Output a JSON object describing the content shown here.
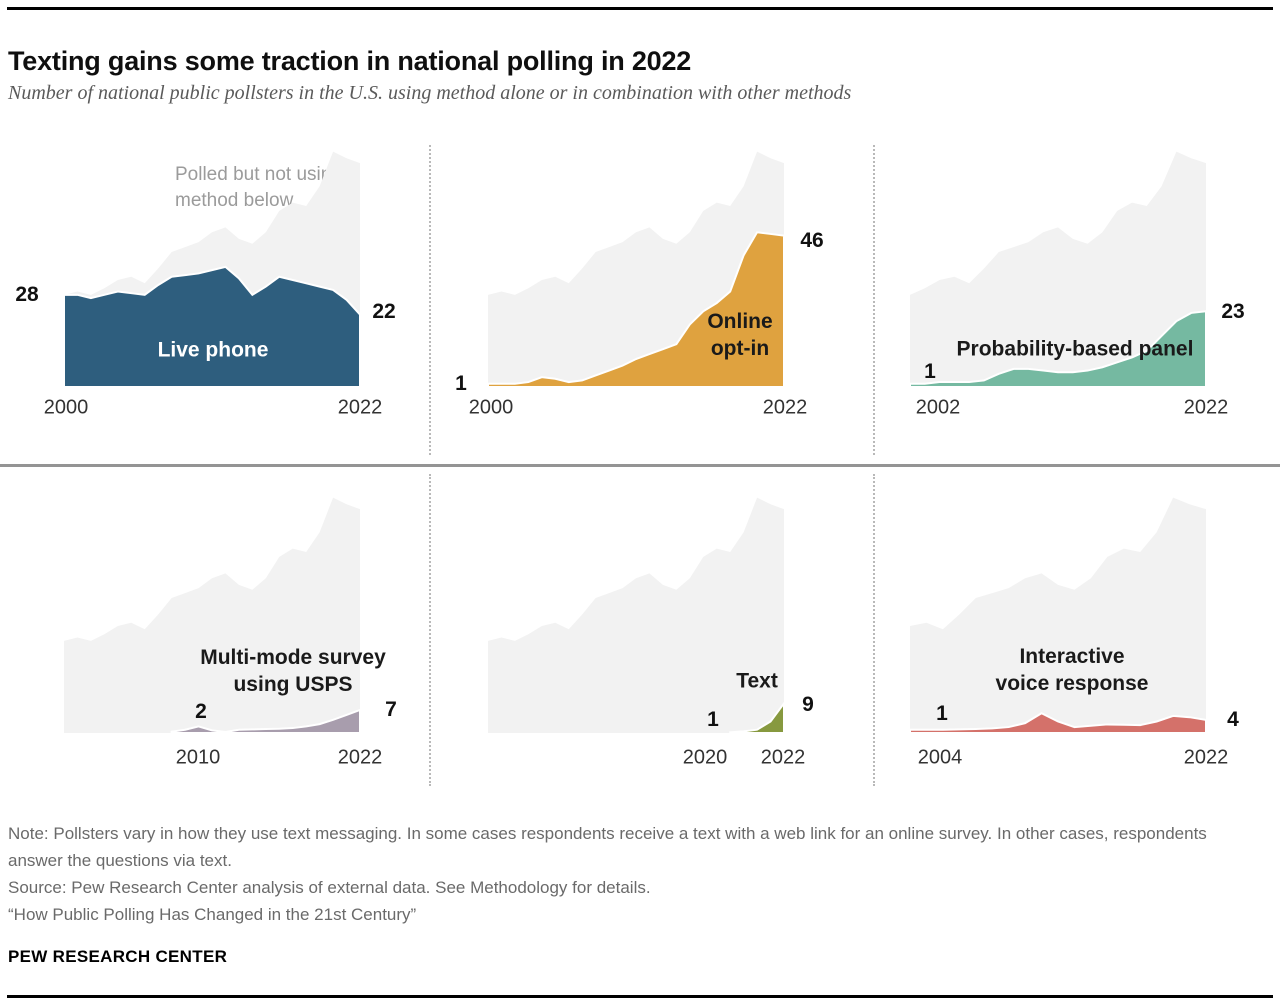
{
  "page": {
    "title": "Texting gains some traction in national polling in 2022",
    "subtitle": "Number of national public pollsters in the U.S. using method alone or in combination with other methods",
    "note": "Note: Pollsters vary in how they use text messaging. In some cases respondents receive a text with a web link for an online survey. In other cases, respondents answer the questions via text.",
    "source": "Source: Pew Research Center analysis of external data. See Methodology for details.",
    "report": "“How Public Polling Has Changed in the 21st Century”",
    "brand": "PEW RESEARCH CENTER"
  },
  "annotation": {
    "lines": [
      "Polled but not using",
      "method below"
    ],
    "color": "#9b9b9b"
  },
  "colors": {
    "gray_area": "#f2f2f2",
    "live_phone": "#2e5e7e",
    "online_opt_in": "#dfa23f",
    "probability_panel": "#75b9a1",
    "usps": "#a89dad",
    "text": "#87993f",
    "ivr": "#d4716a"
  },
  "chart_data": [
    {
      "type": "area",
      "key": "live-phone",
      "title_lines": [
        "Live phone"
      ],
      "color": "#2e5e7e",
      "label_text_color": "#ffffff",
      "x_start": 2000,
      "x_end": 2022,
      "start_label": "28",
      "end_label": "22",
      "axis_ticks": [
        "2000",
        "2022"
      ],
      "ylim": [
        0,
        72
      ],
      "series": [
        {
          "name": "All national pollsters (polled but not using method below)",
          "values": [
            28,
            29,
            28,
            30,
            32.5,
            33.5,
            31.5,
            36,
            41,
            42.5,
            44,
            47,
            48.5,
            45,
            43.5,
            47,
            53.5,
            56,
            55,
            61,
            71.5,
            69.5,
            68
          ]
        },
        {
          "name": "Live phone",
          "values": [
            28,
            28,
            27,
            28,
            29,
            28.5,
            28,
            31,
            33.5,
            34,
            34.5,
            35.5,
            36.5,
            33,
            28,
            30.5,
            33.5,
            32.5,
            31.5,
            30.5,
            29.5,
            26.5,
            22
          ]
        }
      ]
    },
    {
      "type": "area",
      "key": "online-opt-in",
      "title_lines": [
        "Online",
        "opt-in"
      ],
      "color": "#dfa23f",
      "label_text_color": "#1a1a1a",
      "x_start": 2000,
      "x_end": 2022,
      "start_label": "1",
      "end_label": "46",
      "axis_ticks": [
        "2000",
        "2022"
      ],
      "ylim": [
        0,
        72
      ],
      "series": [
        {
          "name": "All national pollsters (polled but not using method below)",
          "values": [
            28,
            29,
            28,
            30,
            32.5,
            33.5,
            31.5,
            36,
            41,
            42.5,
            44,
            47,
            48.5,
            45,
            43.5,
            47,
            53.5,
            56,
            55,
            61,
            71.5,
            69.5,
            68
          ]
        },
        {
          "name": "Online opt-in",
          "values": [
            1,
            1,
            1,
            1.5,
            3,
            2.5,
            1.5,
            2,
            3.5,
            5,
            6.5,
            8.5,
            10,
            11.5,
            13,
            19,
            23,
            25.5,
            29,
            40,
            47,
            46.5,
            46
          ]
        }
      ]
    },
    {
      "type": "area",
      "key": "probability-panel",
      "title_lines": [
        "Probability-based panel"
      ],
      "color": "#75b9a1",
      "label_text_color": "#1a1a1a",
      "x_start": 2002,
      "x_end": 2022,
      "start_label": "1",
      "end_label": "23",
      "axis_ticks": [
        "2002",
        "2022"
      ],
      "ylim": [
        0,
        72
      ],
      "series": [
        {
          "name": "All national pollsters (polled but not using method below)",
          "values": [
            28,
            30,
            32.5,
            33.5,
            31.5,
            36,
            41,
            42.5,
            44,
            47,
            48.5,
            45,
            43.5,
            47,
            53.5,
            56,
            55,
            61,
            71.5,
            69.5,
            68
          ]
        },
        {
          "name": "Probability-based panel",
          "values": [
            1,
            1,
            1.5,
            1.5,
            1.5,
            2,
            4,
            5.5,
            5.5,
            5,
            4.5,
            4.5,
            5,
            6,
            7.5,
            9,
            11,
            15.5,
            20,
            22.5,
            23
          ]
        }
      ]
    },
    {
      "type": "area",
      "key": "usps",
      "title_lines": [
        "Multi-mode survey",
        "using USPS"
      ],
      "color": "#a89dad",
      "label_text_color": "#1a1a1a",
      "x_start": 2000,
      "x_end": 2022,
      "start_label": "2",
      "end_label": "7",
      "axis_ticks": [
        "2010",
        "2022"
      ],
      "ylim": [
        0,
        72
      ],
      "series": [
        {
          "name": "All national pollsters (polled but not using method below)",
          "values": [
            28,
            29,
            28,
            30,
            32.5,
            33.5,
            31.5,
            36,
            41,
            42.5,
            44,
            47,
            48.5,
            45,
            43.5,
            47,
            53.5,
            56,
            55,
            61,
            71.5,
            69.5,
            68
          ]
        },
        {
          "name": "Multi-mode survey using USPS",
          "values": [
            null,
            null,
            null,
            null,
            null,
            null,
            null,
            null,
            0.4,
            1,
            2,
            0.8,
            0.3,
            1,
            1.1,
            1.2,
            1.3,
            1.5,
            2,
            2.7,
            4,
            5.5,
            7
          ]
        }
      ]
    },
    {
      "type": "area",
      "key": "text",
      "title_lines": [
        "Text"
      ],
      "color": "#87993f",
      "label_text_color": "#1a1a1a",
      "x_start": 2000,
      "x_end": 2022,
      "start_label": "1",
      "end_label": "9",
      "axis_ticks": [
        "2020",
        "2022"
      ],
      "ylim": [
        0,
        72
      ],
      "series": [
        {
          "name": "All national pollsters (polled but not using method below)",
          "values": [
            28,
            29,
            28,
            30,
            32.5,
            33.5,
            31.5,
            36,
            41,
            42.5,
            44,
            47,
            48.5,
            45,
            43.5,
            47,
            53.5,
            56,
            55,
            61,
            71.5,
            69.5,
            68
          ]
        },
        {
          "name": "Text",
          "values": [
            null,
            null,
            null,
            null,
            null,
            null,
            null,
            null,
            null,
            null,
            null,
            null,
            null,
            null,
            null,
            null,
            null,
            null,
            0.2,
            0.5,
            1,
            3.5,
            9
          ]
        }
      ]
    },
    {
      "type": "area",
      "key": "ivr",
      "title_lines": [
        "Interactive",
        "voice response"
      ],
      "color": "#d4716a",
      "label_text_color": "#1a1a1a",
      "x_start": 2004,
      "x_end": 2022,
      "start_label": "1",
      "end_label": "4",
      "axis_ticks": [
        "2004",
        "2022"
      ],
      "ylim": [
        0,
        72
      ],
      "series": [
        {
          "name": "All national pollsters (polled but not using method below)",
          "values": [
            32.5,
            33.5,
            31.5,
            36,
            41,
            42.5,
            44,
            47,
            48.5,
            45,
            43.5,
            47,
            53.5,
            56,
            55,
            61,
            71.5,
            69.5,
            68
          ]
        },
        {
          "name": "Interactive voice response",
          "values": [
            1,
            1,
            1,
            1.1,
            1.2,
            1.4,
            1.8,
            3,
            6,
            3.5,
            1.8,
            2.2,
            2.6,
            2.5,
            2.4,
            3.5,
            5.2,
            4.8,
            4
          ]
        }
      ]
    }
  ]
}
